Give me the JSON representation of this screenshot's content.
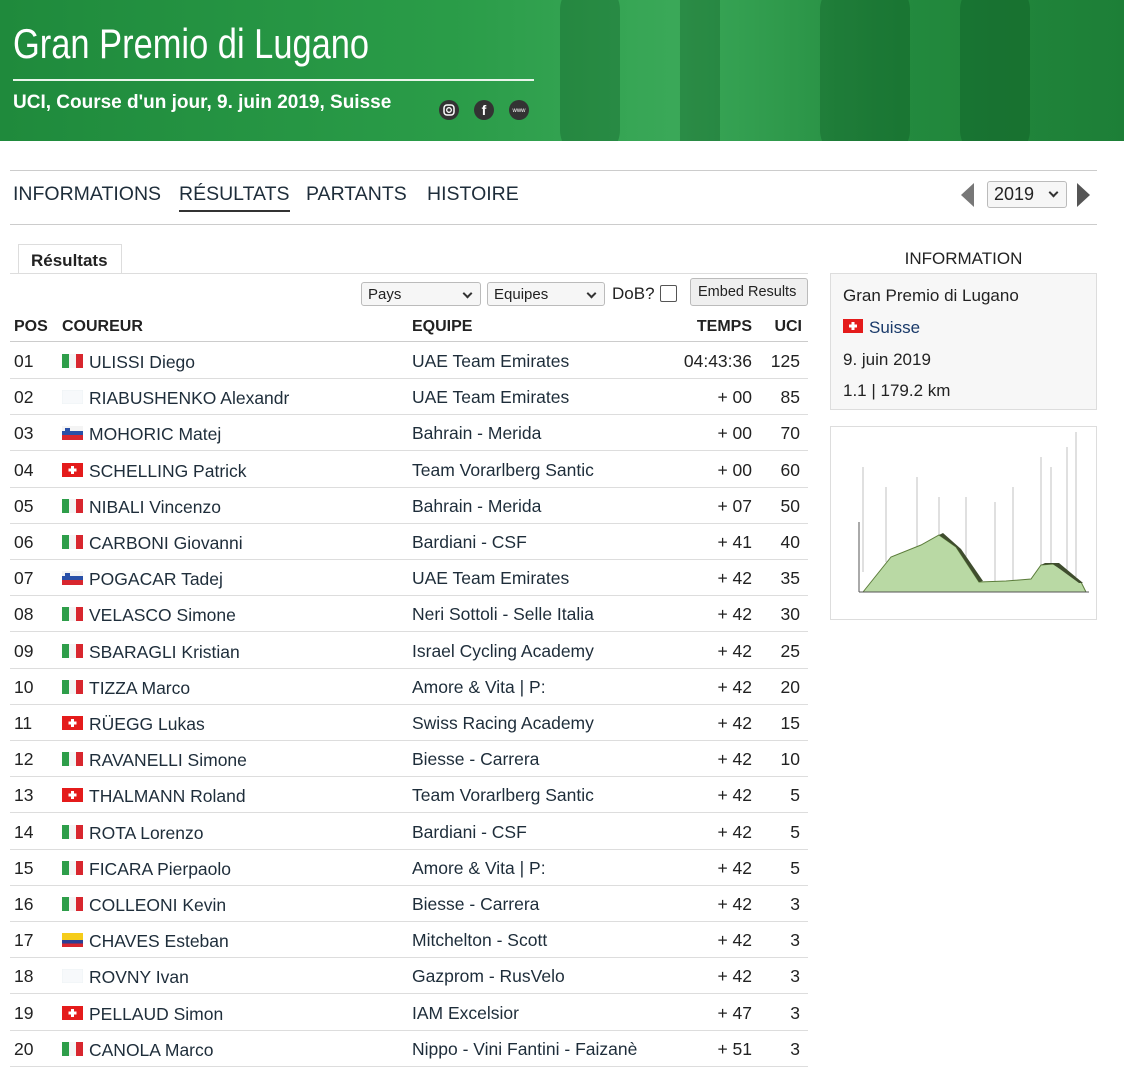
{
  "header": {
    "title": "Gran Premio di Lugano",
    "subtitle": "UCI, Course d'un jour, 9. juin 2019, Suisse",
    "www": "www"
  },
  "nav": {
    "items": [
      "INFORMATIONS",
      "RÉSULTATS",
      "PARTANTS",
      "HISTOIRE"
    ],
    "active": 1,
    "year": "2019"
  },
  "tab": "Résultats",
  "filters": {
    "country": "Pays",
    "team": "Equipes",
    "dob": "DoB?",
    "button": "Embed Results"
  },
  "table": {
    "headers": [
      "POS",
      "COUREUR",
      "EQUIPE",
      "TEMPS",
      "UCI"
    ],
    "rows": [
      {
        "pos": "01",
        "flag": "it",
        "rider": "ULISSI Diego",
        "team": "UAE Team Emirates",
        "time": "04:43:36",
        "uci": "125"
      },
      {
        "pos": "02",
        "flag": "",
        "rider": "RIABUSHENKO Alexandr",
        "team": "UAE Team Emirates",
        "time": "+ 00",
        "uci": "85"
      },
      {
        "pos": "03",
        "flag": "si",
        "rider": "MOHORIC Matej",
        "team": "Bahrain - Merida",
        "time": "+ 00",
        "uci": "70"
      },
      {
        "pos": "04",
        "flag": "ch",
        "rider": "SCHELLING Patrick",
        "team": "Team Vorarlberg Santic",
        "time": "+ 00",
        "uci": "60"
      },
      {
        "pos": "05",
        "flag": "it",
        "rider": "NIBALI Vincenzo",
        "team": "Bahrain - Merida",
        "time": "+ 07",
        "uci": "50"
      },
      {
        "pos": "06",
        "flag": "it",
        "rider": "CARBONI Giovanni",
        "team": "Bardiani - CSF",
        "time": "+ 41",
        "uci": "40"
      },
      {
        "pos": "07",
        "flag": "si",
        "rider": "POGACAR Tadej",
        "team": "UAE Team Emirates",
        "time": "+ 42",
        "uci": "35"
      },
      {
        "pos": "08",
        "flag": "it",
        "rider": "VELASCO Simone",
        "team": "Neri Sottoli - Selle Italia",
        "time": "+ 42",
        "uci": "30"
      },
      {
        "pos": "09",
        "flag": "it",
        "rider": "SBARAGLI Kristian",
        "team": "Israel Cycling Academy",
        "time": "+ 42",
        "uci": "25"
      },
      {
        "pos": "10",
        "flag": "it",
        "rider": "TIZZA Marco",
        "team": "Amore & Vita | P:",
        "time": "+ 42",
        "uci": "20"
      },
      {
        "pos": "11",
        "flag": "ch",
        "rider": "RÜEGG Lukas",
        "team": "Swiss Racing Academy",
        "time": "+ 42",
        "uci": "15"
      },
      {
        "pos": "12",
        "flag": "it",
        "rider": "RAVANELLI Simone",
        "team": "Biesse - Carrera",
        "time": "+ 42",
        "uci": "10"
      },
      {
        "pos": "13",
        "flag": "ch",
        "rider": "THALMANN Roland",
        "team": "Team Vorarlberg Santic",
        "time": "+ 42",
        "uci": "5"
      },
      {
        "pos": "14",
        "flag": "it",
        "rider": "ROTA Lorenzo",
        "team": "Bardiani - CSF",
        "time": "+ 42",
        "uci": "5"
      },
      {
        "pos": "15",
        "flag": "it",
        "rider": "FICARA Pierpaolo",
        "team": "Amore & Vita | P:",
        "time": "+ 42",
        "uci": "5"
      },
      {
        "pos": "16",
        "flag": "it",
        "rider": "COLLEONI Kevin",
        "team": "Biesse - Carrera",
        "time": "+ 42",
        "uci": "3"
      },
      {
        "pos": "17",
        "flag": "co",
        "rider": "CHAVES Esteban",
        "team": "Mitchelton - Scott",
        "time": "+ 42",
        "uci": "3"
      },
      {
        "pos": "18",
        "flag": "",
        "rider": "ROVNY Ivan",
        "team": "Gazprom - RusVelo",
        "time": "+ 42",
        "uci": "3"
      },
      {
        "pos": "19",
        "flag": "ch",
        "rider": "PELLAUD Simon",
        "team": "IAM Excelsior",
        "time": "+ 47",
        "uci": "3"
      },
      {
        "pos": "20",
        "flag": "it",
        "rider": "CANOLA Marco",
        "team": "Nippo - Vini Fantini - Faizanè",
        "time": "+ 51",
        "uci": "3"
      }
    ]
  },
  "sidebar": {
    "heading": "INFORMATION",
    "race": "Gran Premio di Lugano",
    "country": "Suisse",
    "date": "9. juin 2019",
    "details": "1.1 | 179.2 km"
  }
}
